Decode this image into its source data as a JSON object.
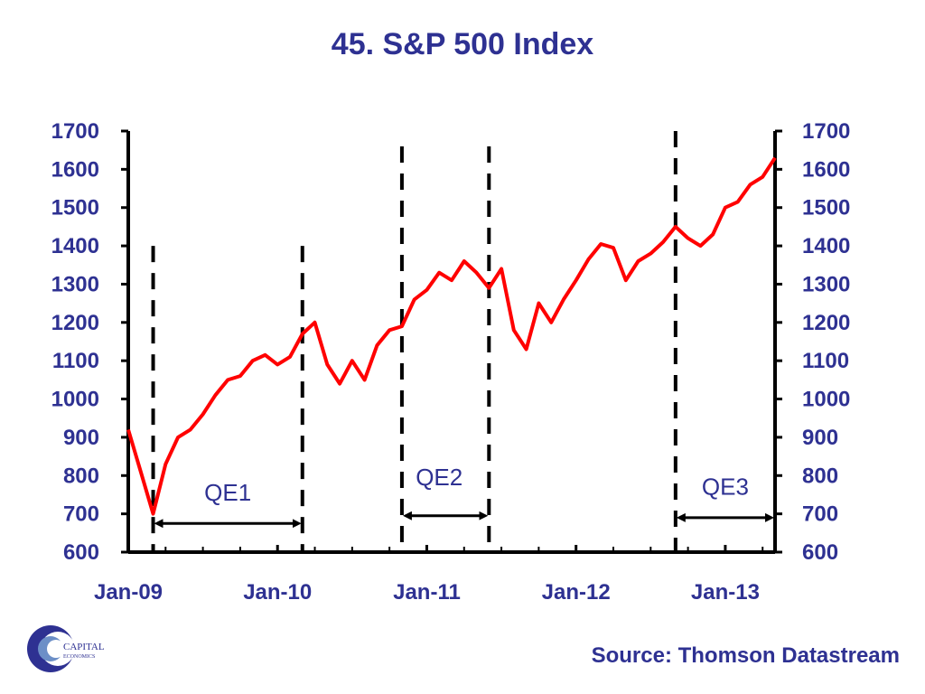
{
  "page": {
    "source": "Source: Thomson Datastream"
  },
  "logo": {
    "text": "CAPITAL ECONOMICS"
  },
  "colors": {
    "text": "#2e3192",
    "line": "#ff0000",
    "axis": "#000000"
  },
  "chart_data": {
    "type": "line",
    "title": "45. S&P 500 Index",
    "xlabel": "",
    "ylabel": "",
    "ylim": [
      600,
      1700
    ],
    "yticks": [
      600,
      700,
      800,
      900,
      1000,
      1100,
      1200,
      1300,
      1400,
      1500,
      1600,
      1700
    ],
    "xlim": [
      "2009-01",
      "2013-05"
    ],
    "xticks": [
      "Jan-09",
      "Jan-10",
      "Jan-11",
      "Jan-12",
      "Jan-13"
    ],
    "right_axis": true,
    "grid": false,
    "series": [
      {
        "values": [
          [
            "2009-01",
            920
          ],
          [
            "2009-02",
            810
          ],
          [
            "2009-03",
            700
          ],
          [
            "2009-04",
            830
          ],
          [
            "2009-05",
            900
          ],
          [
            "2009-06",
            920
          ],
          [
            "2009-07",
            960
          ],
          [
            "2009-08",
            1010
          ],
          [
            "2009-09",
            1050
          ],
          [
            "2009-10",
            1060
          ],
          [
            "2009-11",
            1100
          ],
          [
            "2009-12",
            1115
          ],
          [
            "2010-01",
            1090
          ],
          [
            "2010-02",
            1110
          ],
          [
            "2010-03",
            1170
          ],
          [
            "2010-04",
            1200
          ],
          [
            "2010-05",
            1090
          ],
          [
            "2010-06",
            1040
          ],
          [
            "2010-07",
            1100
          ],
          [
            "2010-08",
            1050
          ],
          [
            "2010-09",
            1140
          ],
          [
            "2010-10",
            1180
          ],
          [
            "2010-11",
            1190
          ],
          [
            "2010-12",
            1260
          ],
          [
            "2011-01",
            1285
          ],
          [
            "2011-02",
            1330
          ],
          [
            "2011-03",
            1310
          ],
          [
            "2011-04",
            1360
          ],
          [
            "2011-05",
            1330
          ],
          [
            "2011-06",
            1290
          ],
          [
            "2011-07",
            1340
          ],
          [
            "2011-08",
            1180
          ],
          [
            "2011-09",
            1130
          ],
          [
            "2011-10",
            1250
          ],
          [
            "2011-11",
            1200
          ],
          [
            "2011-12",
            1260
          ],
          [
            "2012-01",
            1310
          ],
          [
            "2012-02",
            1365
          ],
          [
            "2012-03",
            1405
          ],
          [
            "2012-04",
            1395
          ],
          [
            "2012-05",
            1310
          ],
          [
            "2012-06",
            1360
          ],
          [
            "2012-07",
            1380
          ],
          [
            "2012-08",
            1410
          ],
          [
            "2012-09",
            1450
          ],
          [
            "2012-10",
            1420
          ],
          [
            "2012-11",
            1400
          ],
          [
            "2012-12",
            1430
          ],
          [
            "2013-01",
            1500
          ],
          [
            "2013-02",
            1515
          ],
          [
            "2013-03",
            1560
          ],
          [
            "2013-04",
            1580
          ],
          [
            "2013-05",
            1630
          ]
        ]
      }
    ],
    "annotations": [
      {
        "label": "QE1",
        "start": "2009-03",
        "end": "2010-03",
        "arrow_y": 675,
        "label_y": 735,
        "label_x": "2009-09",
        "line_top": 1400
      },
      {
        "label": "QE2",
        "start": "2010-11",
        "end": "2011-06",
        "arrow_y": 695,
        "label_y": 775,
        "label_x": "2011-02",
        "line_top": 1660
      },
      {
        "label": "QE3",
        "start": "2012-09",
        "end": "2013-05",
        "arrow_y": 690,
        "label_y": 750,
        "label_x": "2013-01",
        "line_top": 1700
      }
    ]
  }
}
